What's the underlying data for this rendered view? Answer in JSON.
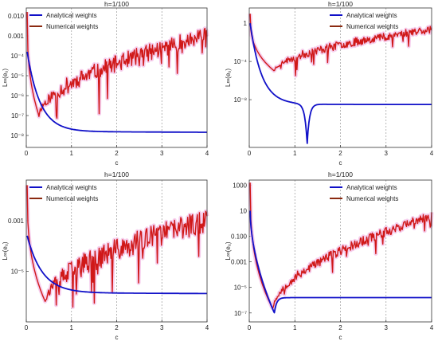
{
  "colors": {
    "analytical": "#1010c8",
    "numerical": "#d01818",
    "numerical_legend": "#8b2a10",
    "halo": "#f4c6ea"
  },
  "chart_data": [
    {
      "type": "line",
      "title": "h=1/100",
      "xlabel": "c",
      "ylabel": "L∞(eᵤ)",
      "log_y": true,
      "grid": true,
      "legend_position": "top-left",
      "xlim": [
        0,
        4
      ],
      "xticks": [
        "0",
        "1",
        "2",
        "3",
        "4"
      ],
      "ylim_log10": [
        -8.6,
        -1.6
      ],
      "yticks": [
        {
          "label": "0.010",
          "log10": -2
        },
        {
          "label": "0.001",
          "log10": -3
        },
        {
          "label": "10⁻⁴",
          "log10": -4
        },
        {
          "label": "10⁻⁵",
          "log10": -5
        },
        {
          "label": "10⁻⁶",
          "log10": -6
        },
        {
          "label": "10⁻⁷",
          "log10": -7
        },
        {
          "label": "10⁻⁸",
          "log10": -8
        }
      ],
      "series": [
        {
          "name": "Analytical weights",
          "color": "#1010c8",
          "model": "decay",
          "start_c": 0.02,
          "start_log10": -3.8,
          "plateau_log10": -7.8,
          "rate": 3.5,
          "end_log10": -7.84
        },
        {
          "name": "Numerical weights",
          "color": "#d01818",
          "model": "noisy",
          "start_c": 0.02,
          "start_log10": -1.8,
          "min_c": 0.28,
          "min_log10": -7.0,
          "end_log10": -3.0,
          "noise": 0.7,
          "seed": 11
        }
      ]
    },
    {
      "type": "line",
      "title": "h=1/100",
      "xlabel": "c",
      "ylabel": "L∞(eᵤ)",
      "log_y": true,
      "grid": true,
      "legend_position": "top-right",
      "xlim": [
        0,
        4
      ],
      "xticks": [
        "0",
        "1",
        "2",
        "3",
        "4"
      ],
      "ylim_log10": [
        -13.0,
        1.6
      ],
      "yticks": [
        {
          "label": "1",
          "log10": 0
        },
        {
          "label": "10⁻⁴",
          "log10": -4
        },
        {
          "label": "10⁻⁸",
          "log10": -8
        }
      ],
      "series": [
        {
          "name": "Analytical weights",
          "color": "#1010c8",
          "model": "cusp",
          "start_c": 0.02,
          "start_log10": 0.0,
          "plateau_log10": -8.5,
          "rate": 4.0,
          "cusp_c": 1.27,
          "cusp_log10": -12.7,
          "cusp_width": 0.05
        },
        {
          "name": "Numerical weights",
          "color": "#d01818",
          "model": "noisy",
          "start_c": 0.02,
          "start_log10": 1.0,
          "min_c": 0.55,
          "min_log10": -5.0,
          "end_log10": -0.6,
          "noise": 0.7,
          "seed": 23
        }
      ]
    },
    {
      "type": "line",
      "title": "h=1/100",
      "xlabel": "c",
      "ylabel": "L∞(eᵤ)",
      "log_y": true,
      "grid": true,
      "legend_position": "top-left",
      "xlim": [
        0,
        4
      ],
      "xticks": [
        "0",
        "1",
        "2",
        "3",
        "4"
      ],
      "ylim_log10": [
        -7.0,
        -1.4
      ],
      "yticks": [
        {
          "label": "0.001",
          "log10": -3
        },
        {
          "label": "10⁻⁵",
          "log10": -5
        }
      ],
      "series": [
        {
          "name": "Analytical weights",
          "color": "#1010c8",
          "model": "decay",
          "start_c": 0.02,
          "start_log10": -3.6,
          "plateau_log10": -5.85,
          "rate": 3.0,
          "end_log10": -5.88
        },
        {
          "name": "Numerical weights",
          "color": "#d01818",
          "model": "noisy",
          "start_c": 0.02,
          "start_log10": -1.6,
          "min_c": 0.42,
          "min_log10": -6.2,
          "end_log10": -3.0,
          "noise": 0.75,
          "seed": 37
        }
      ]
    },
    {
      "type": "line",
      "title": "h=1/100",
      "xlabel": "c",
      "ylabel": "L∞(eᵤ)",
      "log_y": true,
      "grid": true,
      "legend_position": "top-right",
      "xlim": [
        0,
        4
      ],
      "xticks": [
        "0",
        "1",
        "2",
        "3",
        "4"
      ],
      "ylim_log10": [
        -7.7,
        3.4
      ],
      "yticks": [
        {
          "label": "1000",
          "log10": 3
        },
        {
          "label": "10",
          "log10": 1
        },
        {
          "label": "0.100",
          "log10": -1
        },
        {
          "label": "0.001",
          "log10": -3
        },
        {
          "label": "10⁻⁵",
          "log10": -5
        },
        {
          "label": "10⁻⁷",
          "log10": -7
        }
      ],
      "series": [
        {
          "name": "Analytical weights",
          "color": "#1010c8",
          "model": "vee",
          "start_c": 0.02,
          "start_log10": 1.0,
          "min_c": 0.55,
          "min_log10": -7.0,
          "plateau_log10": -5.8
        },
        {
          "name": "Numerical weights",
          "color": "#d01818",
          "model": "noisy",
          "start_c": 0.02,
          "start_log10": 3.2,
          "min_c": 0.52,
          "min_log10": -6.7,
          "end_log10": 0.6,
          "noise": 0.6,
          "seed": 53
        }
      ]
    }
  ]
}
